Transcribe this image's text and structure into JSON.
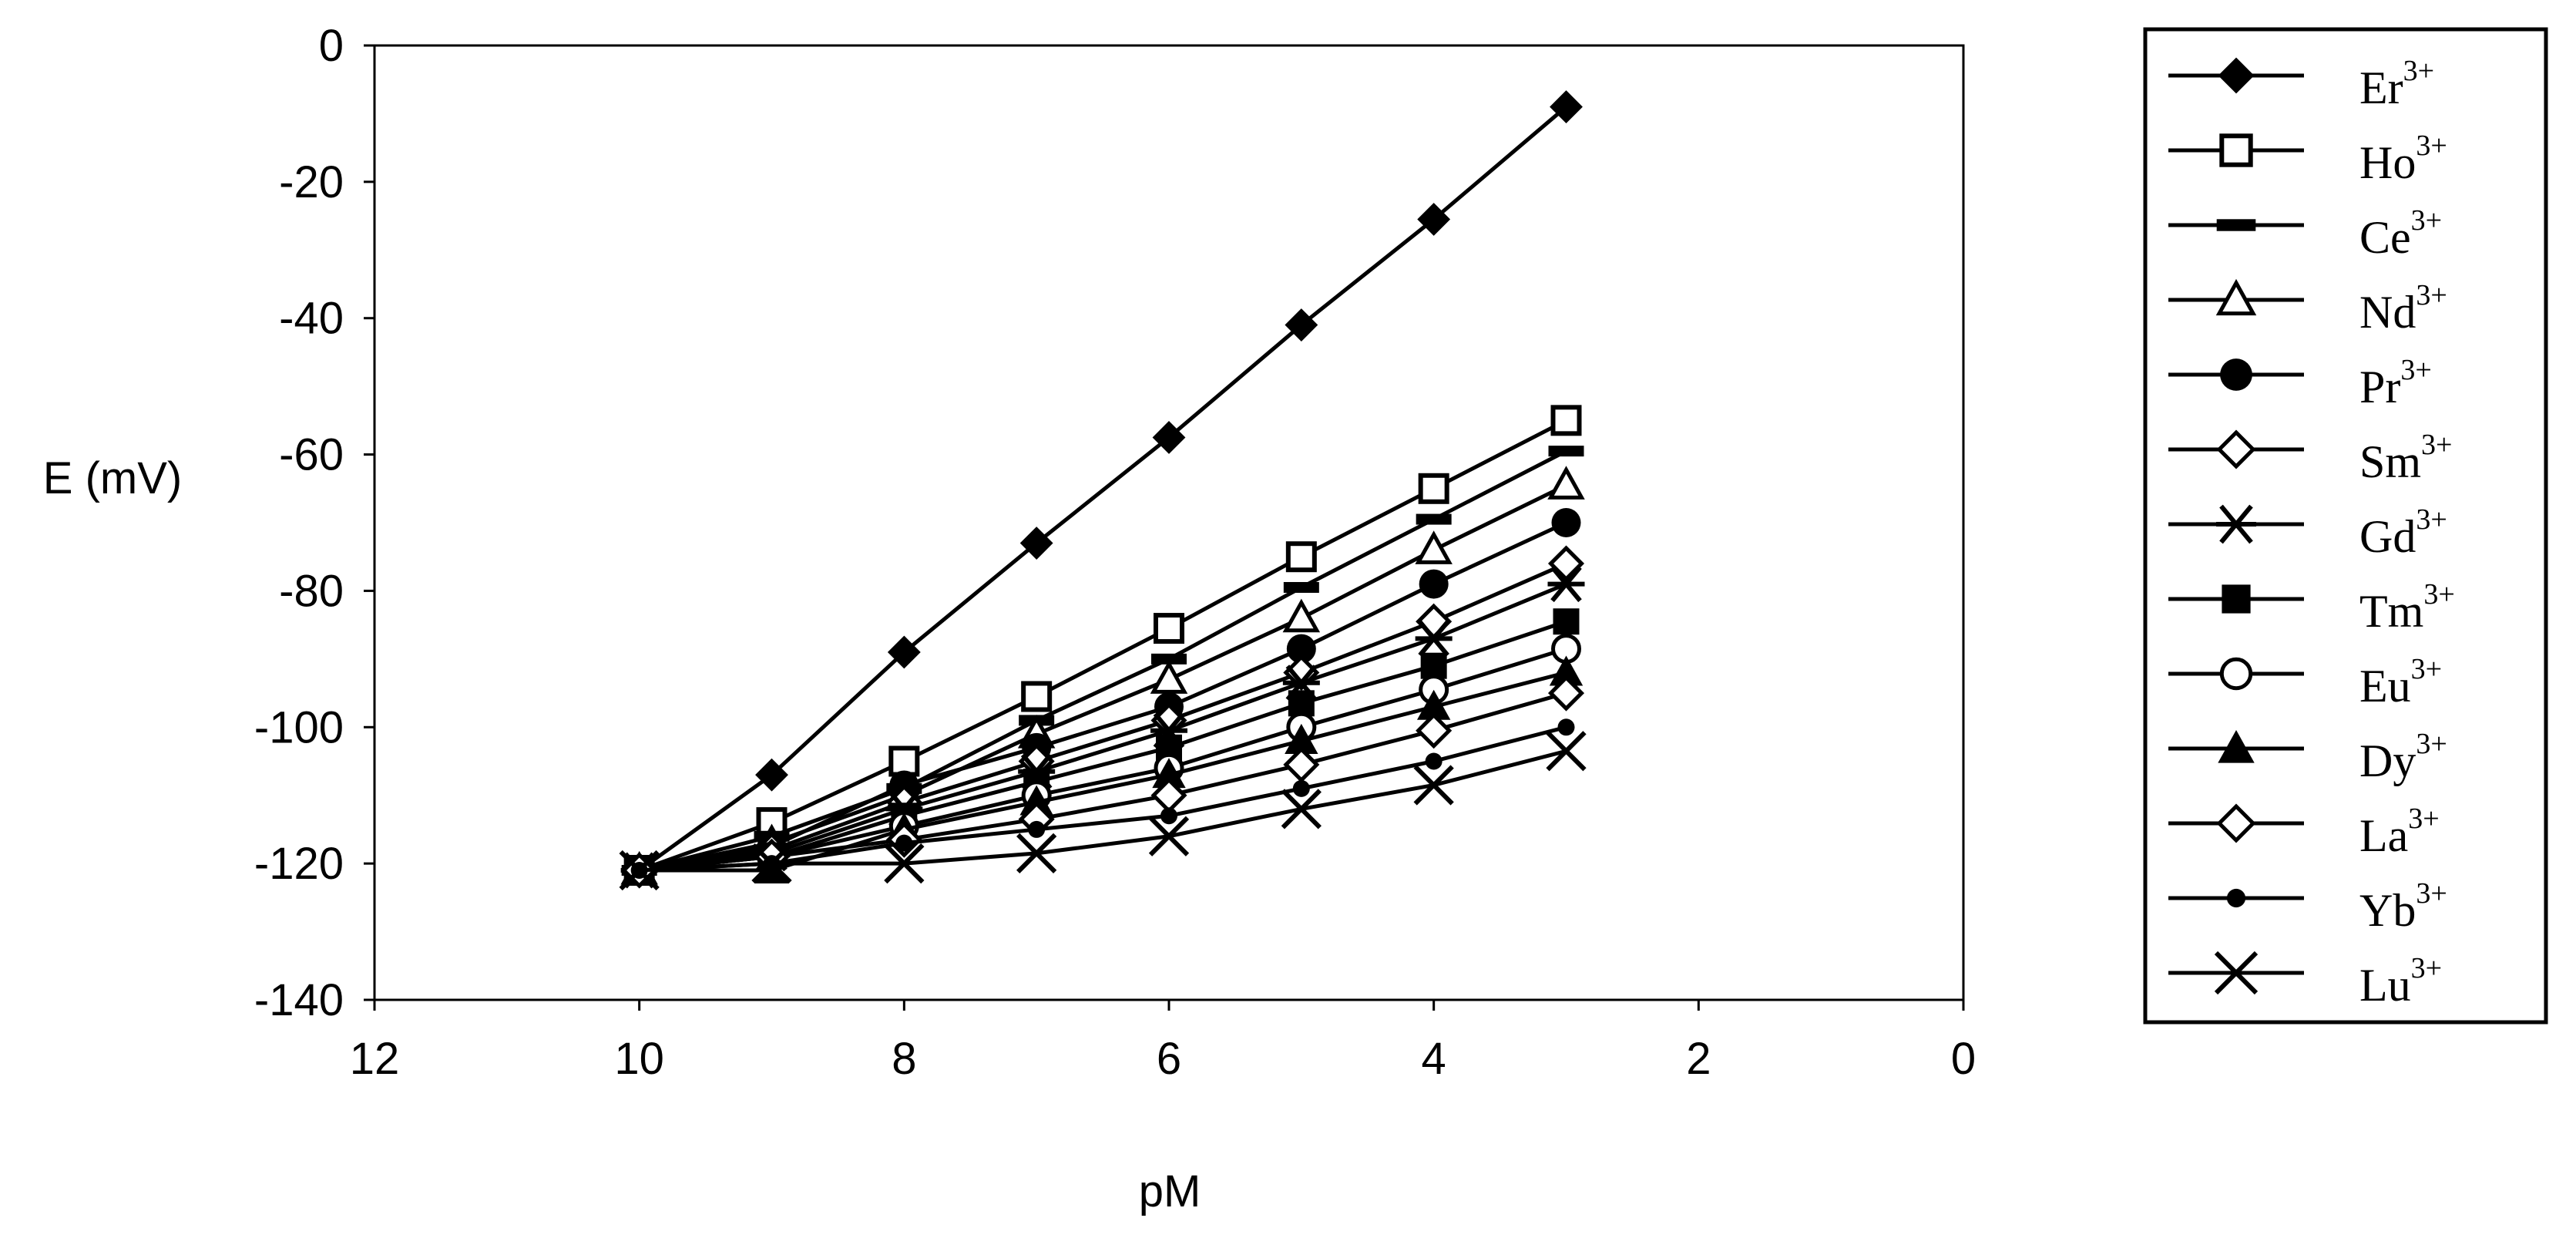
{
  "chart_data": {
    "type": "line",
    "xlabel": "pM",
    "ylabel": "E (mV)",
    "xlim": [
      12,
      0
    ],
    "ylim": [
      -140,
      0
    ],
    "x_reversed": true,
    "xticks": [
      "12",
      "10",
      "8",
      "6",
      "4",
      "2",
      "0"
    ],
    "yticks": [
      "0",
      "-20",
      "-40",
      "-60",
      "-80",
      "-100",
      "-120",
      "-140"
    ],
    "grid": false,
    "legend_position": "right",
    "x": [
      10,
      9,
      8,
      7,
      6,
      5,
      4,
      3
    ],
    "series": [
      {
        "name": "Er",
        "charge": "3+",
        "marker": "diamond-filled",
        "values": [
          -121,
          -107,
          -89,
          -73,
          -57.5,
          -41,
          -25.5,
          -9
        ]
      },
      {
        "name": "Ho",
        "charge": "3+",
        "marker": "square-open",
        "values": [
          -121,
          -114,
          -105,
          -95.5,
          -85.5,
          -75,
          -65,
          -55
        ]
      },
      {
        "name": "Ce",
        "charge": "3+",
        "marker": "dash",
        "values": [
          -121,
          -116,
          -109,
          -99,
          -90,
          -79.5,
          -69.5,
          -59.5
        ]
      },
      {
        "name": "Nd",
        "charge": "3+",
        "marker": "triangle-open",
        "values": [
          -121,
          -117,
          -110,
          -101,
          -93,
          -84,
          -74,
          -64.5
        ]
      },
      {
        "name": "Pr",
        "charge": "3+",
        "marker": "circle-filled",
        "values": [
          -121,
          -117.5,
          -108.5,
          -103,
          -97,
          -88.5,
          -79,
          -70
        ]
      },
      {
        "name": "Sm",
        "charge": "3+",
        "marker": "diamond-open",
        "values": [
          -121,
          -118,
          -111,
          -105,
          -99,
          -92,
          -84.5,
          -76
        ]
      },
      {
        "name": "Gd",
        "charge": "3+",
        "marker": "asterisk",
        "values": [
          -121,
          -118.5,
          -112,
          -106.5,
          -100.5,
          -93.5,
          -87,
          -79
        ]
      },
      {
        "name": "Tm",
        "charge": "3+",
        "marker": "square-filled",
        "values": [
          -121,
          -119,
          -113,
          -108,
          -103,
          -96.5,
          -91,
          -84.5
        ]
      },
      {
        "name": "Eu",
        "charge": "3+",
        "marker": "circle-open",
        "values": [
          -121,
          -119,
          -114.5,
          -110,
          -106,
          -100,
          -94.5,
          -88.5
        ]
      },
      {
        "name": "Dy",
        "charge": "3+",
        "marker": "triangle-filled",
        "values": [
          -121,
          -121,
          -115,
          -111,
          -107,
          -102,
          -97,
          -92
        ]
      },
      {
        "name": "La",
        "charge": "3+",
        "marker": "diamond-open",
        "values": [
          -121,
          -119,
          -116.5,
          -113.5,
          -110,
          -105.5,
          -100.5,
          -95
        ]
      },
      {
        "name": "Yb",
        "charge": "3+",
        "marker": "dot-filled",
        "values": [
          -121,
          -120,
          -117,
          -115,
          -113,
          -109,
          -105,
          -100
        ]
      },
      {
        "name": "Lu",
        "charge": "3+",
        "marker": "x",
        "values": [
          -121,
          -120,
          -120,
          -118.5,
          -116,
          -112,
          -108.5,
          -103.5
        ]
      }
    ]
  }
}
